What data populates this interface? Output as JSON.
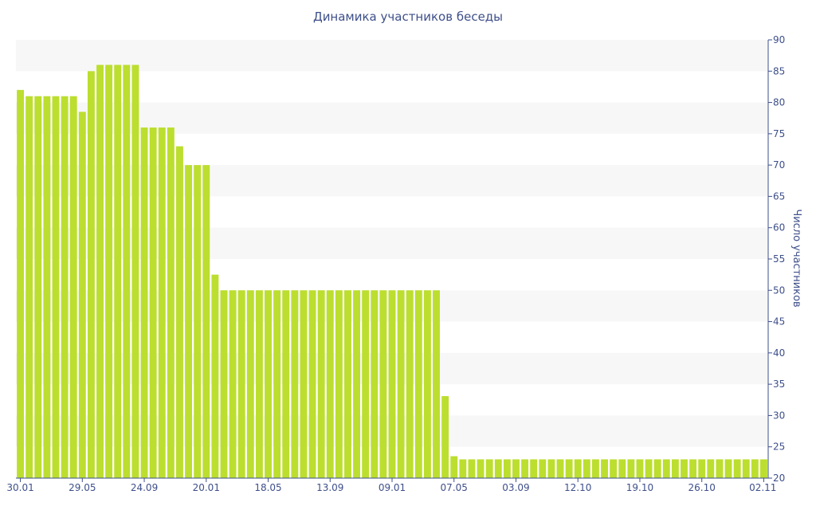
{
  "chart_data": {
    "type": "bar",
    "title": "Динамика участников беседы",
    "xlabel": "",
    "ylabel": "Число участников",
    "ylim": [
      20,
      90
    ],
    "yticks": [
      20,
      25,
      30,
      35,
      40,
      45,
      50,
      55,
      60,
      65,
      70,
      75,
      80,
      85,
      90
    ],
    "xtick_labels": [
      "30.01",
      "29.05",
      "24.09",
      "20.01",
      "18.05",
      "13.09",
      "09.01",
      "07.05",
      "03.09",
      "12.10",
      "19.10",
      "26.10",
      "02.11"
    ],
    "xtick_bar_index": [
      0,
      7,
      14,
      21,
      28,
      35,
      42,
      49,
      56,
      63,
      70,
      77,
      84
    ],
    "y_axis_position": "right",
    "grid": "alternating horizontal bands",
    "bar_color": "#bcde2f",
    "values": [
      82,
      81,
      81,
      81,
      81,
      81,
      81,
      78.5,
      85,
      86,
      86,
      86,
      86,
      86,
      76,
      76,
      76,
      76,
      73,
      70,
      70,
      70,
      52.5,
      50,
      50,
      50,
      50,
      50,
      50,
      50,
      50,
      50,
      50,
      50,
      50,
      50,
      50,
      50,
      50,
      50,
      50,
      50,
      50,
      50,
      50,
      50,
      50,
      50,
      33.1,
      23.5,
      23,
      23,
      23,
      23,
      23,
      23,
      23,
      23,
      23,
      23,
      23,
      23,
      23,
      23,
      23,
      23,
      23,
      23,
      23,
      23,
      23,
      23,
      23,
      23,
      23,
      23,
      23,
      23,
      23,
      23,
      23,
      23,
      23,
      23,
      23
    ]
  }
}
